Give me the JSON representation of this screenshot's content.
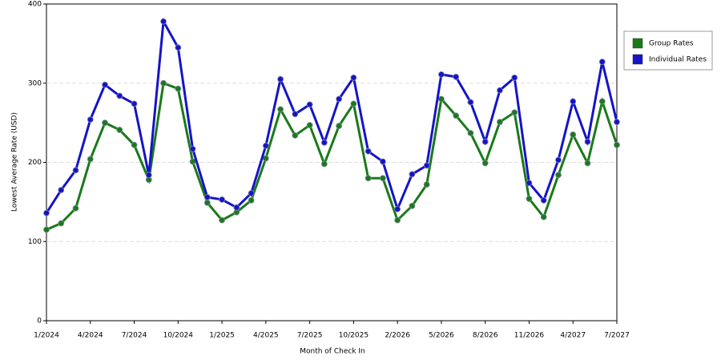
{
  "chart_data": {
    "type": "line",
    "xlabel": "Month of Check In",
    "ylabel": "Lowest Average Rate (USD)",
    "categories": [
      "1/2024",
      null,
      null,
      "4/2024",
      null,
      null,
      "7/2024",
      null,
      null,
      "10/2024",
      null,
      null,
      "1/2025",
      null,
      null,
      "4/2025",
      null,
      null,
      "7/2025",
      null,
      null,
      "10/2025",
      null,
      null,
      "2/2026",
      null,
      null,
      "5/2026",
      null,
      null,
      "8/2026",
      null,
      null,
      "11/2026",
      null,
      null,
      "4/2027",
      null,
      null,
      "7/2027"
    ],
    "series": [
      {
        "name": "Group Rates",
        "color": "#1a7a1a",
        "values": [
          115,
          123,
          142,
          204,
          250,
          241,
          222,
          178,
          300,
          293,
          201,
          149,
          127,
          137,
          152,
          205,
          267,
          234,
          247,
          198,
          246,
          274,
          180,
          180,
          127,
          145,
          172,
          280,
          259,
          237,
          199,
          251,
          263,
          154,
          131,
          184,
          235,
          199,
          277,
          222
        ]
      },
      {
        "name": "Individual Rates",
        "color": "#1414c8",
        "values": [
          136,
          165,
          190,
          254,
          298,
          284,
          274,
          184,
          378,
          345,
          217,
          156,
          153,
          143,
          161,
          221,
          305,
          261,
          273,
          225,
          280,
          307,
          214,
          201,
          141,
          185,
          196,
          311,
          308,
          276,
          226,
          291,
          307,
          174,
          152,
          203,
          277,
          226,
          327,
          251
        ]
      }
    ],
    "ylim": [
      0,
      400
    ],
    "yticks": [
      0,
      100,
      200,
      300,
      400
    ],
    "grid": true,
    "legend": "top-right"
  }
}
